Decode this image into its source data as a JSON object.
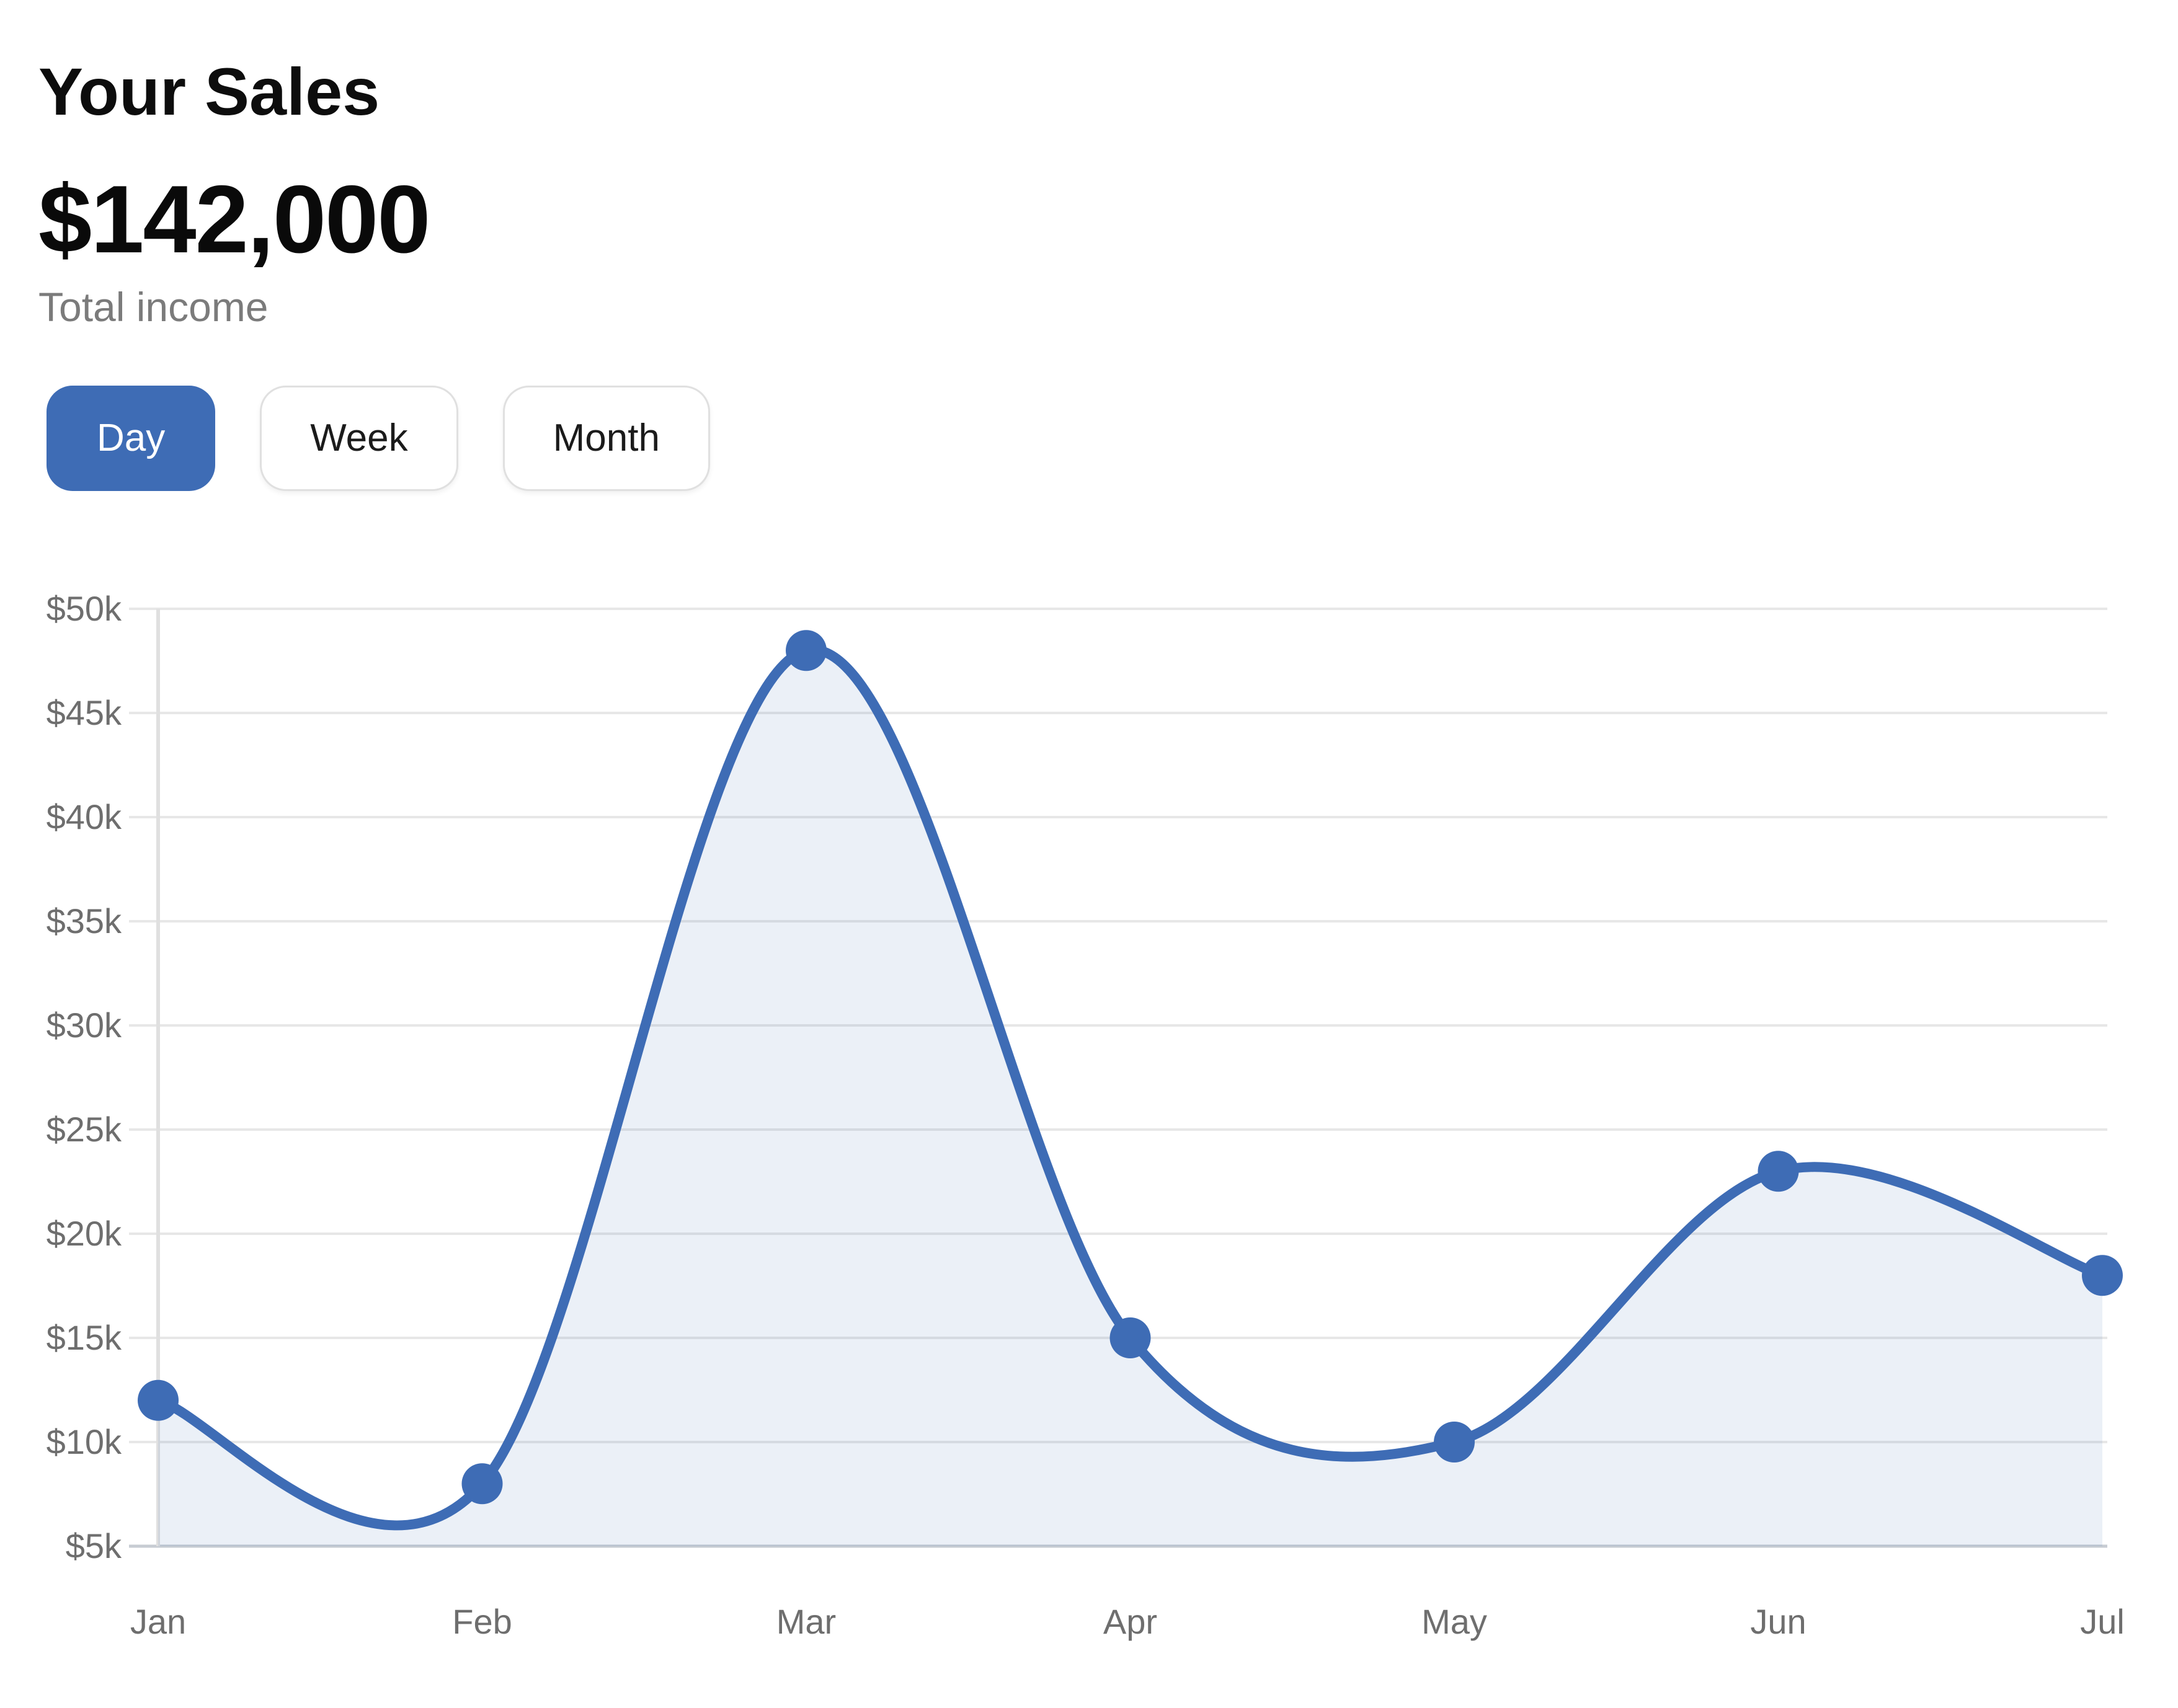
{
  "header": {
    "title": "Your Sales",
    "amount": "$142,000",
    "subtitle": "Total income"
  },
  "controls": [
    {
      "label": "Day",
      "active": true
    },
    {
      "label": "Week",
      "active": false
    },
    {
      "label": "Month",
      "active": false
    }
  ],
  "colors": {
    "accent": "#3e6cb5",
    "area_fill": "rgba(62,108,181,0.10)",
    "grid": "#e7e7e7",
    "grid_baseline": "#c7ccd3",
    "axis_line": "#e0e0e0",
    "axis_text": "#6e6e6e"
  },
  "chart_data": {
    "type": "area",
    "title": "Your Sales",
    "x": [
      "Jan",
      "Feb",
      "Mar",
      "Apr",
      "May",
      "Jun",
      "Jul"
    ],
    "series": [
      {
        "name": "Total income",
        "values": [
          12000,
          8000,
          48000,
          15000,
          10000,
          23000,
          18000
        ]
      }
    ],
    "ylim": [
      5000,
      50000
    ],
    "ytick_step": 5000,
    "ytick_format": "$#k",
    "xlabel": "",
    "ylabel": "",
    "grid": "horizontal",
    "legend": "none",
    "smooth": true,
    "markers": true
  }
}
